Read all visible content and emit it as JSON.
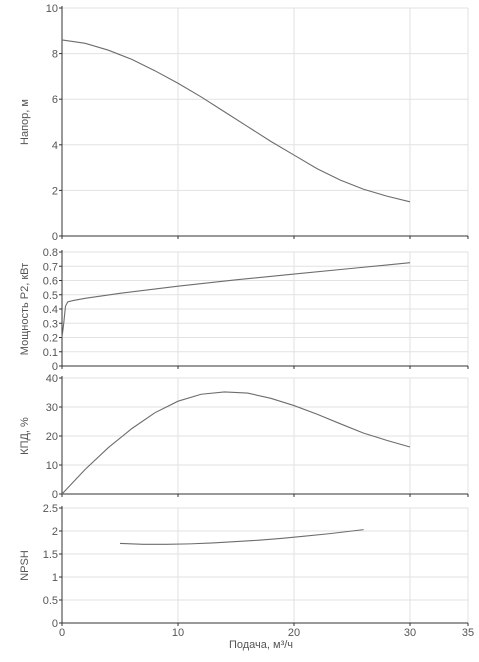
{
  "chart_data": {
    "type": "line",
    "xlabel": "Подача, м³/ч",
    "xlim": [
      0,
      35
    ],
    "xticks": [
      "0",
      "10",
      "20",
      "30",
      "35"
    ],
    "grid": true,
    "colors": {
      "curve": "#6d6d6d",
      "grid": "#e2e2e2",
      "axis": "#333333"
    },
    "panels": [
      {
        "ylabel": "Напор, м",
        "ylim": [
          0,
          10
        ],
        "yticks": [
          "0",
          "2",
          "4",
          "6",
          "8",
          "10"
        ],
        "series": [
          {
            "x": [
              0,
              2,
              4,
              6,
              8,
              10,
              12,
              14,
              16,
              18,
              20,
              22,
              24,
              26,
              28,
              30
            ],
            "y": [
              8.6,
              8.45,
              8.15,
              7.75,
              7.25,
              6.7,
              6.1,
              5.45,
              4.8,
              4.15,
              3.55,
              2.95,
              2.45,
              2.05,
              1.75,
              1.5
            ]
          }
        ]
      },
      {
        "ylabel": "Мощность P2, кВт",
        "ylim": [
          0,
          0.8
        ],
        "yticks": [
          "0",
          "0.1",
          "0.2",
          "0.3",
          "0.4",
          "0.5",
          "0.6",
          "0.7",
          "0.8"
        ],
        "series": [
          {
            "x": [
              0,
              0.15,
              0.3,
              0.5,
              1,
              2,
              5,
              10,
              15,
              20,
              25,
              30
            ],
            "y": [
              0.2,
              0.3,
              0.42,
              0.45,
              0.46,
              0.475,
              0.51,
              0.56,
              0.605,
              0.645,
              0.685,
              0.725
            ]
          }
        ]
      },
      {
        "ylabel": "КПД, %",
        "ylim": [
          0,
          40
        ],
        "yticks": [
          "0",
          "10",
          "20",
          "30",
          "40"
        ],
        "series": [
          {
            "x": [
              0,
              2,
              4,
              6,
              8,
              10,
              12,
              14,
              16,
              18,
              20,
              22,
              24,
              26,
              28,
              30
            ],
            "y": [
              0,
              8.5,
              16,
              22.5,
              28,
              32,
              34.4,
              35.2,
              34.8,
              33,
              30.5,
              27.5,
              24.2,
              21,
              18.5,
              16.2
            ]
          }
        ]
      },
      {
        "ylabel": "NPSH",
        "ylim": [
          0,
          2.5
        ],
        "yticks": [
          "0",
          "0.5",
          "1",
          "1.5",
          "2",
          "2.5"
        ],
        "series": [
          {
            "x": [
              5,
              7,
              9,
              11,
              13,
              15,
              17,
              19,
              21,
              23,
              26
            ],
            "y": [
              1.73,
              1.71,
              1.71,
              1.72,
              1.74,
              1.77,
              1.8,
              1.84,
              1.89,
              1.94,
              2.03
            ]
          }
        ]
      }
    ]
  }
}
